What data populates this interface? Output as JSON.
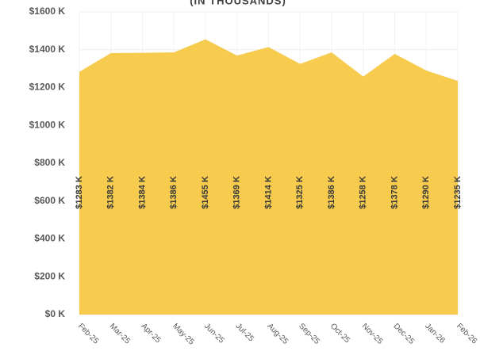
{
  "chart_data": {
    "type": "area",
    "title": "(IN THOUSANDS)",
    "categories": [
      "Feb-25",
      "Mar-25",
      "Apr-25",
      "May-25",
      "Jun-25",
      "Jul-25",
      "Aug-25",
      "Sep-25",
      "Oct-25",
      "Nov-25",
      "Dec-25",
      "Jan-26",
      "Feb-26"
    ],
    "values": [
      1283,
      1382,
      1384,
      1386,
      1455,
      1369,
      1414,
      1325,
      1386,
      1258,
      1378,
      1290,
      1235
    ],
    "value_labels": [
      "$1283 K",
      "$1382 K",
      "$1384 K",
      "$1386 K",
      "$1455 K",
      "$1369 K",
      "$1414 K",
      "$1325 K",
      "$1386 K",
      "$1258 K",
      "$1378 K",
      "$1290 K",
      "$1235 K"
    ],
    "color": "#f7c843",
    "ylim": [
      0,
      1600
    ],
    "yticks": [
      {
        "value": 0,
        "label": "$0 K"
      },
      {
        "value": 200,
        "label": "$200 K"
      },
      {
        "value": 400,
        "label": "$400 K"
      },
      {
        "value": 600,
        "label": "$600 K"
      },
      {
        "value": 800,
        "label": "$800 K"
      },
      {
        "value": 1000,
        "label": "$1000 K"
      },
      {
        "value": 1200,
        "label": "$1200 K"
      },
      {
        "value": 1400,
        "label": "$1400 K"
      },
      {
        "value": 1600,
        "label": "$1600 K"
      }
    ],
    "grid": true
  }
}
